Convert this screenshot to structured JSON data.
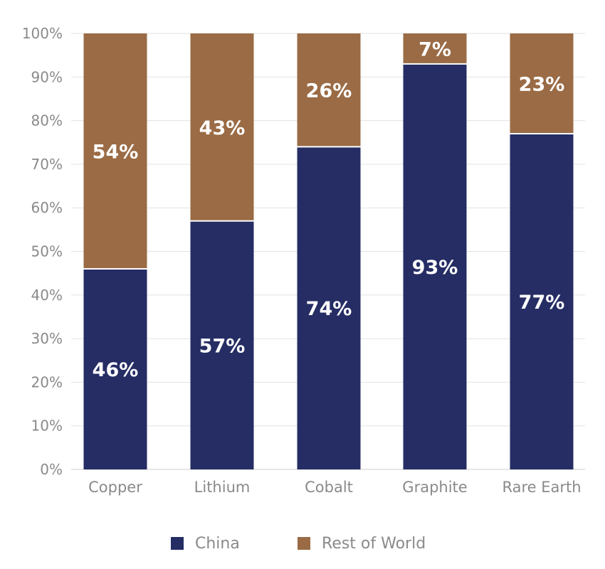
{
  "chart_data": {
    "type": "bar",
    "stacked": true,
    "percent": true,
    "title": "",
    "xlabel": "",
    "ylabel": "",
    "ylim": [
      0,
      100
    ],
    "yticks": [
      "0%",
      "10%",
      "20%",
      "30%",
      "40%",
      "50%",
      "60%",
      "70%",
      "80%",
      "90%",
      "100%"
    ],
    "categories": [
      "Copper",
      "Lithium",
      "Cobalt",
      "Graphite",
      "Rare Earth"
    ],
    "series": [
      {
        "name": "China",
        "color": "#252d64",
        "values": [
          46,
          57,
          74,
          93,
          77
        ],
        "labels": [
          "46%",
          "57%",
          "74%",
          "93%",
          "77%"
        ]
      },
      {
        "name": "Rest of World",
        "color": "#9a6b45",
        "values": [
          54,
          43,
          26,
          7,
          23
        ],
        "labels": [
          "54%",
          "43%",
          "26%",
          "7%",
          "23%"
        ]
      }
    ],
    "grid": true,
    "legend_position": "bottom"
  }
}
